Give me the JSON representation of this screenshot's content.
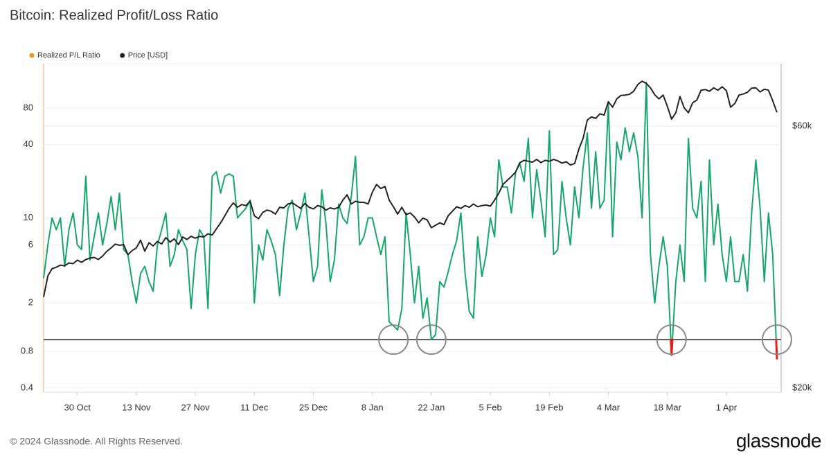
{
  "chart_data": {
    "type": "line",
    "title": "Bitcoin: Realized Profit/Loss Ratio",
    "footer": "© 2024 Glassnode. All Rights Reserved.",
    "brand": "glassnode",
    "x": [
      0,
      1,
      2,
      3,
      4,
      5,
      6,
      7,
      8,
      9,
      10,
      11,
      12,
      13,
      14,
      15,
      16,
      17,
      18,
      19,
      20,
      21,
      22,
      23,
      24,
      25,
      26,
      27,
      28,
      29,
      30,
      31,
      32,
      33,
      34,
      35,
      36,
      37,
      38,
      39,
      40,
      41,
      42,
      43,
      44,
      45,
      46,
      47,
      48,
      49,
      50,
      51,
      52,
      53,
      54,
      55,
      56,
      57,
      58,
      59,
      60,
      61,
      62,
      63,
      64,
      65,
      66,
      67,
      68,
      69,
      70,
      71,
      72,
      73,
      74,
      75,
      76,
      77,
      78,
      79,
      80,
      81,
      82,
      83,
      84,
      85,
      86,
      87,
      88,
      89,
      90,
      91,
      92,
      93,
      94,
      95,
      96,
      97,
      98,
      99,
      100,
      101,
      102,
      103,
      104,
      105,
      106,
      107,
      108,
      109,
      110,
      111,
      112,
      113,
      114,
      115,
      116,
      117,
      118,
      119,
      120,
      121,
      122,
      123,
      124,
      125,
      126,
      127,
      128,
      129,
      130,
      131,
      132,
      133,
      134,
      135,
      136,
      137,
      138,
      139,
      140,
      141,
      142,
      143,
      144,
      145,
      146,
      147,
      148,
      149,
      150,
      151,
      152,
      153,
      154,
      155,
      156,
      157,
      158,
      159,
      160,
      161,
      162,
      163,
      164,
      165,
      166,
      167,
      168,
      169,
      170,
      171,
      172,
      173,
      174
    ],
    "xlim": [
      0,
      175
    ],
    "xticks": [
      {
        "value": 8,
        "label": "30 Oct"
      },
      {
        "value": 22,
        "label": "13 Nov"
      },
      {
        "value": 36,
        "label": "27 Nov"
      },
      {
        "value": 50,
        "label": "11 Dec"
      },
      {
        "value": 64,
        "label": "25 Dec"
      },
      {
        "value": 78,
        "label": "8 Jan"
      },
      {
        "value": 92,
        "label": "22 Jan"
      },
      {
        "value": 106,
        "label": "5 Feb"
      },
      {
        "value": 120,
        "label": "19 Feb"
      },
      {
        "value": 134,
        "label": "4 Mar"
      },
      {
        "value": 148,
        "label": "18 Mar"
      },
      {
        "value": 162,
        "label": "1 Apr"
      }
    ],
    "ylim": [
      0.37,
      185
    ],
    "yticks": [
      0.4,
      0.8,
      2,
      6,
      10,
      40,
      80
    ],
    "ylog": true,
    "y2lim": [
      19650,
      78000
    ],
    "y2ticks": [
      {
        "value": 20000,
        "label": "$20k"
      },
      {
        "value": 60000,
        "label": "$60k"
      }
    ],
    "y2log": true,
    "grid": true,
    "legend": "top-left",
    "reference_line": 1,
    "below_color": "#e0201c",
    "highlights": [
      83,
      92,
      149,
      174
    ],
    "series": [
      {
        "name": "Realized P/L Ratio",
        "color": "#16a56a",
        "legend_color": "#f7931a",
        "values": [
          3.2,
          6,
          10,
          8,
          10,
          4,
          8,
          11,
          6,
          5.5,
          22,
          4.5,
          7,
          11,
          6,
          9,
          15,
          8,
          16,
          5.5,
          5,
          3,
          2,
          3.5,
          4,
          3,
          2.5,
          6,
          8,
          11,
          4,
          5,
          8,
          6.5,
          5.5,
          1.8,
          5,
          8,
          7,
          1.8,
          22,
          24,
          16,
          22,
          23,
          22,
          10,
          11,
          12,
          14,
          2,
          6,
          4.5,
          8,
          6.5,
          5,
          2.3,
          6,
          12,
          14,
          8,
          11,
          16,
          7,
          3,
          4,
          17,
          9,
          3,
          4.5,
          13,
          10,
          9,
          15,
          32,
          6,
          7,
          10,
          10,
          7,
          5,
          7,
          1.4,
          1.3,
          1.2,
          1.8,
          11,
          5,
          2,
          4,
          1.5,
          2.2,
          1.0,
          1.1,
          3,
          2.7,
          3.6,
          5,
          6.5,
          11,
          3.5,
          1.7,
          1.5,
          7,
          3.3,
          5,
          10,
          7,
          30,
          18,
          18,
          11,
          24,
          28,
          20,
          45,
          10,
          25,
          14,
          7,
          52,
          5,
          5.5,
          20,
          10,
          6,
          18,
          10,
          26,
          50,
          12,
          35,
          12,
          14,
          86,
          7,
          42,
          30,
          55,
          35,
          50,
          32,
          10,
          130,
          5,
          2,
          4,
          7,
          4,
          0.75,
          3,
          6,
          3,
          45,
          12,
          10,
          20,
          3,
          30,
          6,
          13,
          5,
          3,
          7,
          3,
          3,
          5,
          2.5,
          11,
          30,
          12,
          3,
          11,
          5,
          0.7
        ]
      },
      {
        "name": "Price [USD]",
        "color": "#222222",
        "legend_color": "#222222",
        "axis": "y2",
        "values": [
          29300,
          32000,
          33000,
          33200,
          33500,
          33400,
          33800,
          33700,
          34200,
          33900,
          34300,
          34500,
          34600,
          34300,
          34800,
          35500,
          36000,
          36600,
          36400,
          36500,
          35000,
          35600,
          36000,
          37200,
          35500,
          36800,
          36300,
          37000,
          36600,
          37600,
          36900,
          37400,
          36500,
          37700,
          37300,
          37800,
          37500,
          37800,
          37700,
          38200,
          38000,
          39000,
          40000,
          41200,
          42500,
          43500,
          42700,
          43200,
          43000,
          43800,
          41200,
          40700,
          41800,
          42200,
          42000,
          41500,
          42700,
          42600,
          43300,
          43500,
          43000,
          42500,
          43400,
          42700,
          42400,
          43000,
          42800,
          42200,
          42600,
          42400,
          42700,
          44000,
          45000,
          43300,
          43800,
          43600,
          43600,
          43300,
          45500,
          47000,
          46200,
          46600,
          44000,
          42800,
          41500,
          42700,
          41400,
          41700,
          41000,
          40000,
          40800,
          40500,
          39200,
          39600,
          40000,
          39700,
          41200,
          42000,
          42800,
          42500,
          43000,
          42700,
          43300,
          42800,
          43000,
          43100,
          42900,
          44000,
          45300,
          47000,
          47800,
          48600,
          49500,
          51500,
          52000,
          51800,
          51600,
          52200,
          51500,
          52000,
          51800,
          52200,
          51900,
          51400,
          51700,
          51000,
          51300,
          54500,
          57000,
          61600,
          62400,
          62000,
          63200,
          62900,
          66500,
          65000,
          67300,
          68300,
          68400,
          68600,
          69500,
          71500,
          72500,
          71800,
          70500,
          68500,
          67300,
          68400,
          65200,
          61800,
          63500,
          68000,
          64800,
          63500,
          66200,
          67000,
          69800,
          70000,
          69500,
          70500,
          69800,
          70800,
          69700,
          65000,
          66000,
          68400,
          68700,
          69200,
          70400,
          70500,
          69300,
          70100,
          69800,
          66800,
          63600
        ]
      }
    ]
  }
}
